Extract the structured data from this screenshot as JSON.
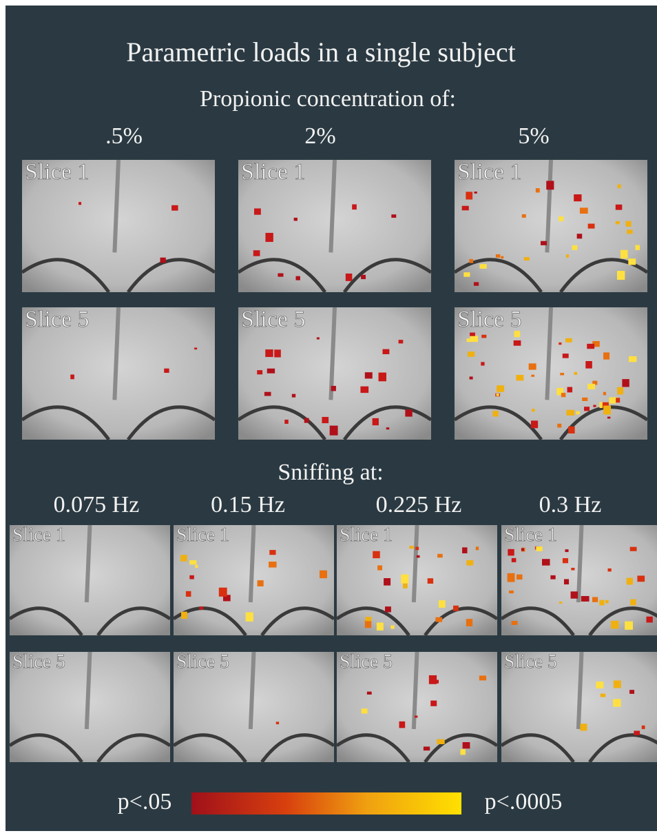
{
  "title": "Parametric loads in a single subject",
  "concentration": {
    "heading": "Propionic concentration of:",
    "columns": [
      ".5%",
      "2%",
      "5%"
    ],
    "rows": [
      [
        "Slice 1",
        "Slice 1",
        "Slice 1"
      ],
      [
        "Slice 5",
        "Slice 5",
        "Slice 5"
      ]
    ]
  },
  "sniffing": {
    "heading": "Sniffing at:",
    "columns": [
      "0.075 Hz",
      "0.15 Hz",
      "0.225 Hz",
      "0.3 Hz"
    ],
    "rows": [
      [
        "Slice 1",
        "Slice 1",
        "Slice 1",
        "Slice 1"
      ],
      [
        "Slice 5",
        "Slice 5",
        "Slice 5",
        "Slice 5"
      ]
    ]
  },
  "colorbar": {
    "low": "p<.05",
    "high": "p<.0005"
  }
}
